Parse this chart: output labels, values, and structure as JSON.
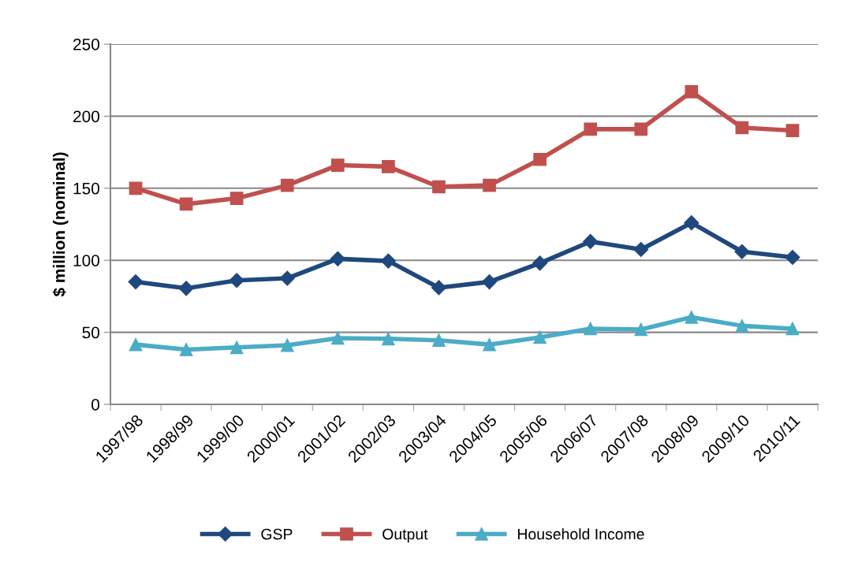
{
  "chart_data": {
    "type": "line",
    "ylabel": "$ million (nominal)",
    "categories": [
      "1997/98",
      "1998/99",
      "1999/00",
      "2000/01",
      "2001/02",
      "2002/03",
      "2003/04",
      "2004/05",
      "2005/06",
      "2006/07",
      "2007/08",
      "2008/09",
      "2009/10",
      "2010/11"
    ],
    "series": [
      {
        "name": "GSP",
        "color": "#1f497d",
        "marker": "diamond",
        "values": [
          85,
          80.5,
          86,
          87.5,
          101,
          99.5,
          81,
          85,
          98,
          113,
          107.5,
          126,
          106,
          102
        ]
      },
      {
        "name": "Output",
        "color": "#c0504d",
        "marker": "square",
        "values": [
          150,
          139,
          143,
          152,
          166,
          165,
          151,
          152,
          170,
          191,
          191,
          217,
          192,
          190
        ]
      },
      {
        "name": "Household Income",
        "color": "#4bacc6",
        "marker": "triangle",
        "values": [
          41.5,
          38,
          39.5,
          41,
          46,
          45.5,
          44.5,
          41.5,
          46.5,
          52.5,
          52,
          60.5,
          54.5,
          52.5
        ]
      }
    ],
    "ylim": [
      0,
      250
    ],
    "yticks": [
      0,
      50,
      100,
      150,
      200,
      250
    ],
    "grid": "y",
    "legend": "bottom",
    "line_style": "solid"
  }
}
